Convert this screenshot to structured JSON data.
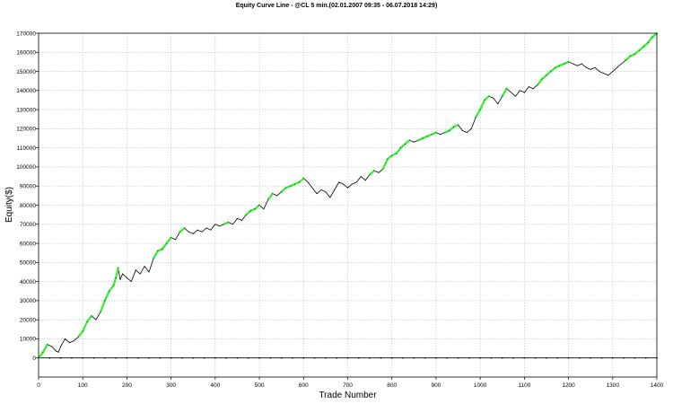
{
  "chart_data": {
    "type": "line",
    "title": "Equity Curve Line - @CL 5 min.(02.01.2007 09:35 - 06.07.2018 14:29)",
    "xlabel": "Trade Number",
    "ylabel": "Equity($)",
    "xlim": [
      0,
      1400
    ],
    "ylim": [
      -10000,
      170000
    ],
    "x_ticks": [
      "0",
      "100",
      "200",
      "300",
      "400",
      "500",
      "600",
      "700",
      "800",
      "900",
      "1000",
      "1100",
      "1200",
      "1300",
      "1400"
    ],
    "y_ticks": [
      "0",
      "10000",
      "20000",
      "30000",
      "40000",
      "50000",
      "60000",
      "70000",
      "80000",
      "90000",
      "100000",
      "110000",
      "120000",
      "130000",
      "140000",
      "150000",
      "160000",
      "170000"
    ],
    "grid": true,
    "legend": "none",
    "colors": {
      "new_high": "#33ee33",
      "drawdown": "#000000",
      "zero_line": "#000000"
    },
    "series": [
      {
        "x": [
          0,
          10,
          20,
          30,
          40,
          45,
          50,
          60,
          70,
          80,
          90,
          100,
          110,
          120,
          130,
          140,
          150,
          160,
          170,
          175,
          180,
          185,
          190,
          200,
          210,
          220,
          230,
          240,
          250,
          260,
          270,
          280,
          290,
          300,
          310,
          320,
          330,
          340,
          350,
          360,
          370,
          380,
          390,
          400,
          410,
          420,
          430,
          440,
          450,
          460,
          470,
          480,
          490,
          500,
          510,
          520,
          530,
          540,
          550,
          560,
          570,
          580,
          590,
          600,
          610,
          620,
          630,
          640,
          650,
          660,
          670,
          680,
          690,
          700,
          710,
          720,
          730,
          740,
          750,
          760,
          770,
          780,
          790,
          800,
          810,
          820,
          830,
          840,
          850,
          860,
          870,
          880,
          890,
          900,
          910,
          920,
          930,
          940,
          950,
          960,
          970,
          980,
          990,
          1000,
          1010,
          1020,
          1030,
          1040,
          1050,
          1060,
          1070,
          1080,
          1090,
          1100,
          1110,
          1120,
          1130,
          1140,
          1150,
          1160,
          1170,
          1180,
          1190,
          1200,
          1210,
          1220,
          1230,
          1240,
          1250,
          1260,
          1270,
          1280,
          1290,
          1300,
          1310,
          1320,
          1330,
          1340,
          1350,
          1360,
          1370,
          1380,
          1390,
          1400
        ],
        "values": [
          0,
          3000,
          7000,
          6000,
          3500,
          3000,
          6000,
          10000,
          8000,
          9000,
          11000,
          14000,
          19000,
          22000,
          20000,
          24000,
          30000,
          35000,
          38000,
          42000,
          47000,
          41000,
          44000,
          42000,
          40000,
          46000,
          44000,
          48000,
          45000,
          52000,
          56000,
          57000,
          60000,
          63000,
          62000,
          66000,
          68000,
          66000,
          65000,
          67000,
          66000,
          68000,
          67000,
          70000,
          69000,
          70000,
          71000,
          70000,
          73000,
          72000,
          75000,
          77000,
          78000,
          80000,
          78000,
          83000,
          86000,
          85000,
          87000,
          89000,
          90000,
          91000,
          92000,
          94000,
          92000,
          89000,
          86000,
          88000,
          87000,
          84000,
          88000,
          92000,
          91000,
          89000,
          91000,
          92000,
          95000,
          93000,
          96000,
          98000,
          97000,
          99000,
          104000,
          106000,
          107000,
          110000,
          112000,
          114000,
          113000,
          114000,
          115000,
          116000,
          117000,
          118000,
          117000,
          118000,
          119000,
          121000,
          122000,
          119000,
          118000,
          120000,
          126000,
          130000,
          135000,
          137000,
          136000,
          133000,
          137000,
          141000,
          139000,
          137000,
          140000,
          139000,
          142000,
          141000,
          143000,
          146000,
          148000,
          150000,
          152000,
          153000,
          154000,
          155000,
          154000,
          153000,
          154000,
          152000,
          151000,
          152000,
          150000,
          149000,
          148000,
          150000,
          152000,
          154000,
          156000,
          158000,
          159000,
          161000,
          163000,
          165000,
          168000,
          170000
        ]
      }
    ]
  }
}
